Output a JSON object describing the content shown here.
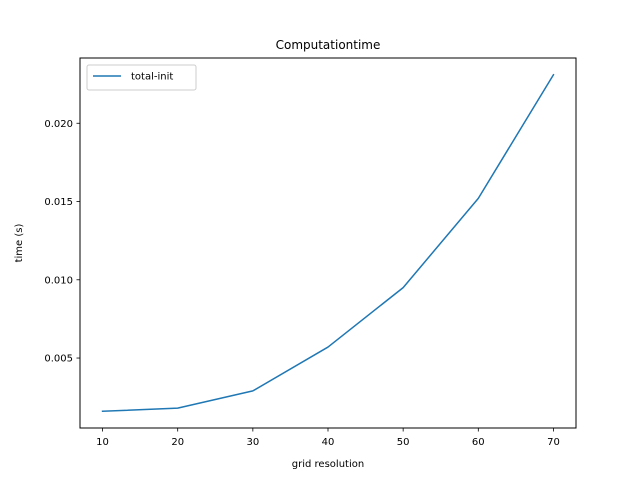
{
  "chart_data": {
    "type": "line",
    "title": "Computationtime",
    "xlabel": "grid resolution",
    "ylabel": "time (s)",
    "x": [
      10,
      20,
      30,
      40,
      50,
      60,
      70
    ],
    "series": [
      {
        "name": "total-init",
        "color": "#1f77b4",
        "values": [
          0.0016,
          0.0018,
          0.0029,
          0.0057,
          0.0095,
          0.0152,
          0.0231
        ]
      }
    ],
    "xlim": [
      7,
      73
    ],
    "ylim": [
      0.00053,
      0.02417
    ],
    "xticks": [
      10,
      20,
      30,
      40,
      50,
      60,
      70
    ],
    "xtick_labels": [
      "10",
      "20",
      "30",
      "40",
      "50",
      "60",
      "70"
    ],
    "yticks": [
      0.005,
      0.01,
      0.015,
      0.02
    ],
    "ytick_labels": [
      "0.005",
      "0.010",
      "0.015",
      "0.020"
    ],
    "grid": false,
    "legend_position": "top-left"
  }
}
